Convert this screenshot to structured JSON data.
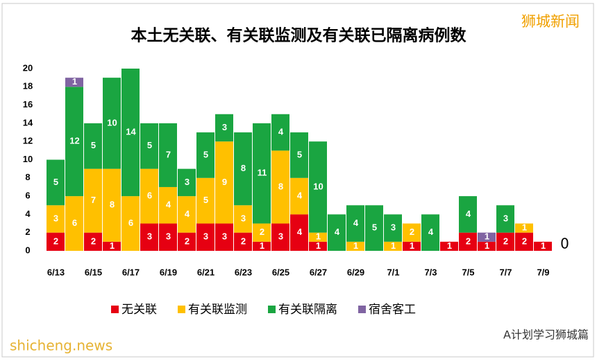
{
  "chart_data": {
    "type": "stacked_bar",
    "title": "本土无关联、有关联监测及有关联已隔离病例数",
    "categories": [
      "6/13",
      null,
      "6/15",
      null,
      "6/17",
      null,
      "6/19",
      null,
      "6/21",
      null,
      "6/23",
      null,
      "6/25",
      null,
      "6/27",
      null,
      "6/29",
      null,
      "7/1",
      null,
      "7/3",
      null,
      "7/5",
      null,
      "7/7",
      null,
      "7/9",
      null
    ],
    "series": [
      {
        "name": "无关联",
        "color": "#e60012",
        "values": [
          2,
          0,
          2,
          1,
          0,
          3,
          3,
          2,
          3,
          3,
          2,
          1,
          3,
          4,
          1,
          0,
          0,
          0,
          0,
          1,
          0,
          1,
          2,
          1,
          2,
          2,
          1,
          0
        ]
      },
      {
        "name": "有关联监测",
        "color": "#ffc000",
        "values": [
          3,
          6,
          7,
          8,
          6,
          6,
          4,
          4,
          5,
          9,
          3,
          2,
          8,
          4,
          1,
          0,
          1,
          0,
          1,
          2,
          0,
          0,
          0,
          0,
          0,
          1,
          0,
          0
        ]
      },
      {
        "name": "有关联隔离",
        "color": "#1aa541",
        "values": [
          5,
          12,
          5,
          10,
          14,
          5,
          7,
          3,
          5,
          3,
          8,
          11,
          4,
          5,
          10,
          4,
          4,
          5,
          3,
          0,
          4,
          0,
          4,
          0,
          3,
          0,
          0,
          0
        ]
      },
      {
        "name": "宿舍客工",
        "color": "#8064a2",
        "values": [
          0,
          1,
          0,
          0,
          0,
          0,
          0,
          0,
          0,
          0,
          0,
          0,
          0,
          0,
          0,
          0,
          0,
          0,
          0,
          0,
          0,
          0,
          0,
          1,
          0,
          0,
          0,
          0
        ]
      }
    ],
    "ylim": [
      0,
      20
    ],
    "yticks": [
      0,
      2,
      4,
      6,
      8,
      10,
      12,
      14,
      16,
      18,
      20
    ],
    "grid": false
  },
  "brand": "狮城新闻",
  "footer_left": "shicheng.news",
  "footer_right": "A计划学习狮城篇"
}
